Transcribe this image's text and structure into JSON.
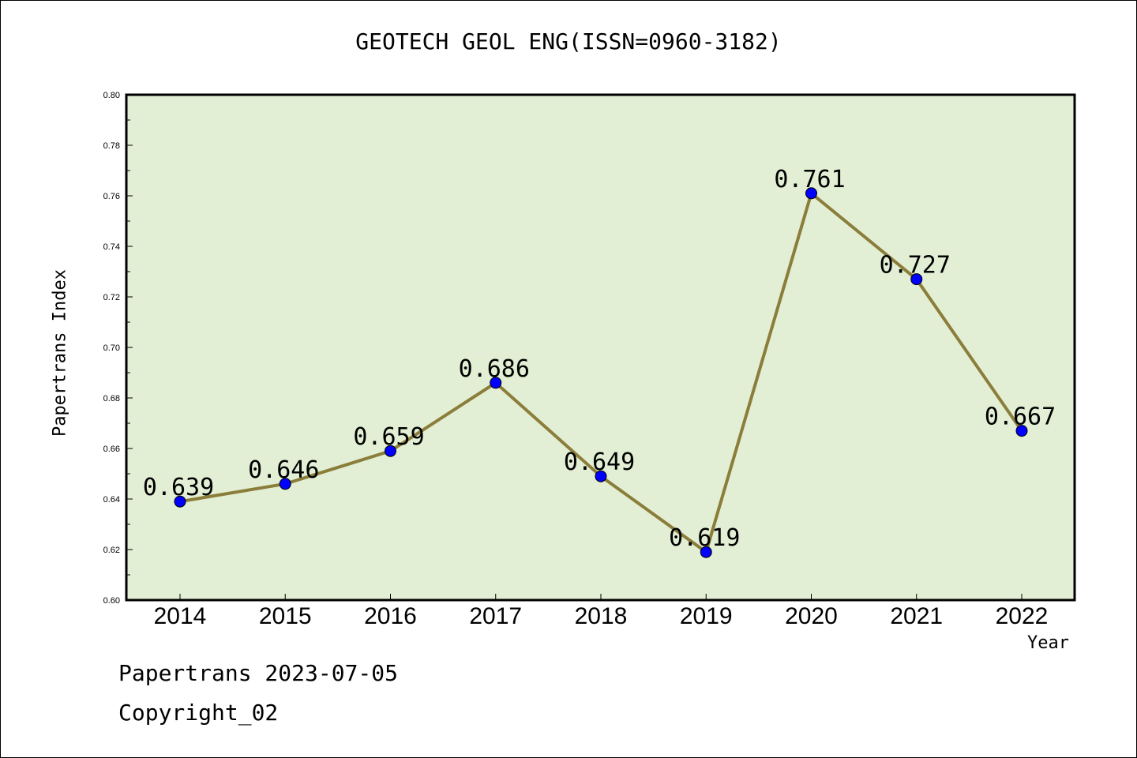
{
  "chart_data": {
    "type": "line",
    "title": "GEOTECH GEOL ENG(ISSN=0960-3182)",
    "xlabel": "Year",
    "ylabel": "Papertrans Index",
    "categories": [
      "2014",
      "2015",
      "2016",
      "2017",
      "2018",
      "2019",
      "2020",
      "2021",
      "2022"
    ],
    "series": [
      {
        "values": [
          0.639,
          0.646,
          0.659,
          0.686,
          0.649,
          0.619,
          0.761,
          0.727,
          0.667
        ],
        "labels": [
          "0.639",
          "0.646",
          "0.659",
          "0.686",
          "0.649",
          "0.619",
          "0.761",
          "0.727",
          "0.667"
        ]
      }
    ],
    "ylim": [
      0.6,
      0.8
    ],
    "yticks": [
      "0.60",
      "0.62",
      "0.64",
      "0.66",
      "0.68",
      "0.70",
      "0.72",
      "0.74",
      "0.76",
      "0.78",
      "0.80"
    ],
    "colors": {
      "plot_background": "#e2efd4",
      "line": "#8b7d3a",
      "marker": "#0000ff"
    },
    "grid": false
  },
  "footer": {
    "date_line": "Papertrans 2023-07-05",
    "copyright_line": "Copyright_02"
  }
}
